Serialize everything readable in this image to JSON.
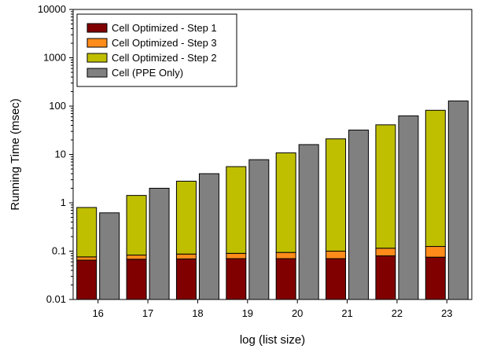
{
  "chart_data": {
    "type": "bar",
    "scale_y": "log",
    "xlabel": "log (list size)",
    "ylabel": "Running Time (msec)",
    "ylim": [
      0.01,
      10000
    ],
    "y_ticks": [
      "0.01",
      "0.1",
      "1",
      "10",
      "100",
      "1000",
      "10000"
    ],
    "categories": [
      "16",
      "17",
      "18",
      "19",
      "20",
      "21",
      "22",
      "23"
    ],
    "grid": false,
    "legend_position": "top-left",
    "stacked_group": {
      "bar": "Cell Optimized",
      "layers": [
        {
          "name": "Cell Optimized - Step 1",
          "color": "#800000",
          "cumulative_values": [
            0.065,
            0.068,
            0.069,
            0.07,
            0.07,
            0.07,
            0.08,
            0.075
          ]
        },
        {
          "name": "Cell Optimized - Step 3",
          "color": "#ff8c1a",
          "cumulative_values": [
            0.076,
            0.083,
            0.087,
            0.09,
            0.094,
            0.1,
            0.115,
            0.125
          ]
        },
        {
          "name": "Cell Optimized - Step 2",
          "color": "#bfbf00",
          "cumulative_values": [
            0.8,
            1.42,
            2.8,
            5.6,
            10.8,
            21,
            41,
            82
          ]
        }
      ]
    },
    "series": [
      {
        "name": "Cell (PPE Only)",
        "color": "#808080",
        "values": [
          0.62,
          2.0,
          4.0,
          7.8,
          16,
          32,
          63,
          128
        ]
      }
    ],
    "legend": [
      "Cell Optimized - Step 1",
      "Cell Optimized - Step 3",
      "Cell Optimized - Step 2",
      "Cell (PPE Only)"
    ]
  }
}
